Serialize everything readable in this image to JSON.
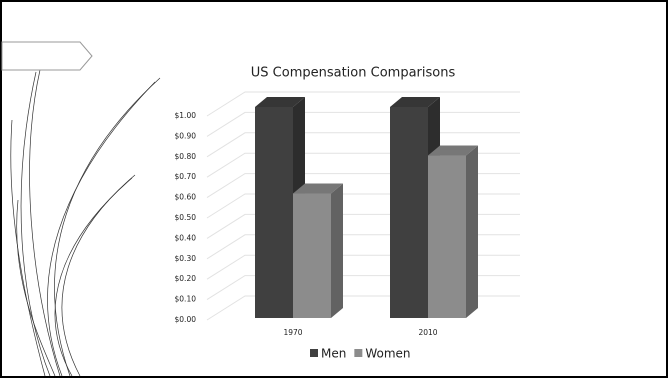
{
  "chart_data": {
    "type": "bar3d",
    "title": "US Compensation Comparisons",
    "categories": [
      "1970",
      "2010"
    ],
    "series": [
      {
        "name": "Men",
        "color": "#404040",
        "values": [
          1.0,
          1.0
        ]
      },
      {
        "name": "Women",
        "color": "#8c8c8c",
        "values": [
          0.59,
          0.77
        ]
      }
    ],
    "ylim": [
      0,
      1
    ],
    "yticks": [
      {
        "value": 0,
        "label": "$0.00"
      },
      {
        "value": 0.1,
        "label": "$0.10"
      },
      {
        "value": 0.2,
        "label": "$0.20"
      },
      {
        "value": 0.3,
        "label": "$0.30"
      },
      {
        "value": 0.4,
        "label": "$0.40"
      },
      {
        "value": 0.5,
        "label": "$0.50"
      },
      {
        "value": 0.6,
        "label": "$0.60"
      },
      {
        "value": 0.7,
        "label": "$0.70"
      },
      {
        "value": 0.8,
        "label": "$0.80"
      },
      {
        "value": 0.9,
        "label": "$0.90"
      },
      {
        "value": 1.0,
        "label": "$1.00"
      }
    ],
    "grid": true,
    "legend": "bottom"
  }
}
